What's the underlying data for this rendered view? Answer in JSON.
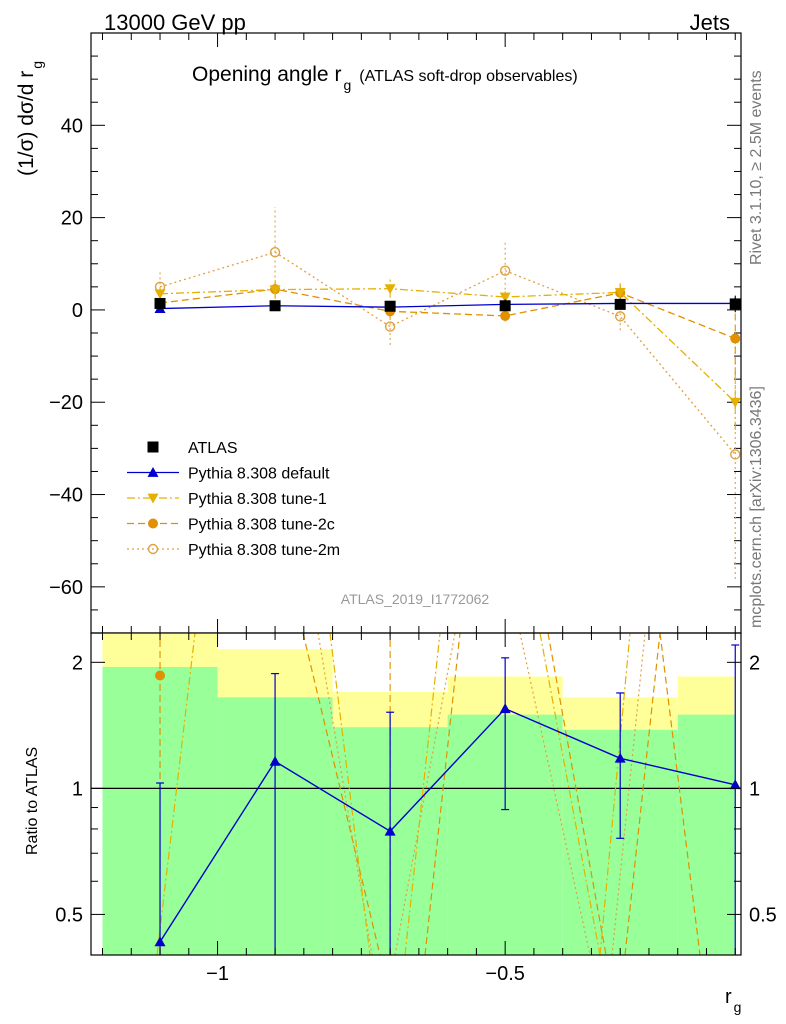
{
  "header": {
    "left": "13000 GeV pp",
    "right": "Jets"
  },
  "side_labels": {
    "rivet": "Rivet 3.1.10, ≥ 2.5M events",
    "mcplots": "mcplots.cern.ch [arXiv:1306.3436]"
  },
  "chart_data": [
    {
      "type": "scatter",
      "title": "Opening angle r",
      "title_sub": "g",
      "title_suffix": "(ATLAS soft-drop observables)",
      "ylabel": "(1/σ) dσ/d r",
      "ylabel_sub": "g",
      "watermark": "ATLAS_2019_I1772062",
      "xlim": [
        -1.22,
        -0.09
      ],
      "ylim": [
        -70,
        60
      ],
      "yticks": [
        -60,
        -40,
        -20,
        0,
        20,
        40
      ],
      "ytick_labels": [
        "−60",
        "−40",
        "−20",
        "0",
        "20",
        "40"
      ],
      "x": [
        -1.1,
        -0.9,
        -0.7,
        -0.5,
        -0.3,
        -0.1
      ],
      "series": [
        {
          "name": "ATLAS",
          "color": "#000000",
          "marker": "square",
          "line": "none",
          "values": [
            1.4,
            0.9,
            0.8,
            0.9,
            1.2,
            1.3
          ],
          "errors": [
            0.8,
            0.5,
            0.5,
            0.5,
            0.6,
            1.8
          ]
        },
        {
          "name": "Pythia 8.308 default",
          "color": "#0000cc",
          "marker": "triangle-up",
          "line": "solid",
          "values": [
            0.3,
            0.9,
            0.6,
            1.2,
            1.4,
            1.4
          ],
          "errors": [
            0.5,
            0.3,
            0.3,
            0.4,
            0.4,
            1.3
          ]
        },
        {
          "name": "Pythia 8.308 tune-1",
          "color": "#e6b000",
          "marker": "triangle-down",
          "line": "dashdot",
          "values": [
            3.5,
            4.4,
            4.6,
            2.8,
            3.8,
            -20
          ],
          "errors": [
            1.5,
            2.0,
            2.0,
            1.6,
            2.0,
            6
          ]
        },
        {
          "name": "Pythia 8.308 tune-2c",
          "color": "#e09000",
          "marker": "circle",
          "line": "dashed",
          "values": [
            1.5,
            4.5,
            -0.3,
            -1.3,
            3.7,
            -6.2
          ],
          "errors": [
            1.2,
            2.0,
            1.5,
            1.2,
            1.8,
            8
          ]
        },
        {
          "name": "Pythia 8.308 tune-2m",
          "color": "#e0a040",
          "marker": "circle-open",
          "line": "dotted",
          "values": [
            5.0,
            12.5,
            -3.6,
            8.5,
            -1.4,
            -31.3
          ],
          "errors": [
            3.8,
            9.8,
            4.0,
            6.3,
            3.0,
            27
          ]
        }
      ]
    },
    {
      "type": "line",
      "ylabel": "Ratio to ATLAS",
      "xlabel": "r",
      "xlabel_sub": "g",
      "xlim": [
        -1.22,
        -0.09
      ],
      "ylim": [
        0.4,
        2.35
      ],
      "scale": "log",
      "xticks": [
        -1,
        -0.5
      ],
      "xtick_labels": [
        "−1",
        "−0.5"
      ],
      "yticks": [
        0.5,
        1,
        2
      ],
      "ytick_labels": [
        "0.5",
        "1",
        "2"
      ],
      "bins": [
        {
          "lo": -1.2,
          "hi": -1.0,
          "green": [
            0.4,
            1.95
          ],
          "yellow": [
            0.4,
            2.6
          ]
        },
        {
          "lo": -1.0,
          "hi": -0.8,
          "green": [
            0.4,
            1.65
          ],
          "yellow": [
            0.4,
            2.15
          ]
        },
        {
          "lo": -0.8,
          "hi": -0.6,
          "green": [
            0.4,
            1.4
          ],
          "yellow": [
            0.71,
            1.7
          ]
        },
        {
          "lo": -0.6,
          "hi": -0.4,
          "green": [
            0.4,
            1.5
          ],
          "yellow": [
            0.61,
            1.85
          ]
        },
        {
          "lo": -0.4,
          "hi": -0.2,
          "green": [
            0.4,
            1.38
          ],
          "yellow": [
            0.74,
            1.65
          ]
        },
        {
          "lo": -0.2,
          "hi": -0.1,
          "green": [
            0.4,
            1.5
          ],
          "yellow": [
            0.62,
            1.85
          ]
        }
      ],
      "series": [
        {
          "name": "Pythia 8.308 default",
          "color": "#0000cc",
          "marker": "triangle-up",
          "line": "solid",
          "values": [
            0.43,
            1.16,
            0.79,
            1.55,
            1.18,
            1.02
          ],
          "err_lo": [
            0.4,
            0.4,
            0.4,
            0.89,
            0.76,
            0.4
          ],
          "err_hi": [
            1.03,
            1.88,
            1.52,
            2.05,
            1.69,
            2.2
          ]
        },
        {
          "name": "Pythia 8.308 tune-2c",
          "color": "#e09000",
          "marker": "circle",
          "line": "dashed",
          "values": [
            1.86,
            null,
            null,
            null,
            null,
            null
          ]
        }
      ]
    }
  ]
}
